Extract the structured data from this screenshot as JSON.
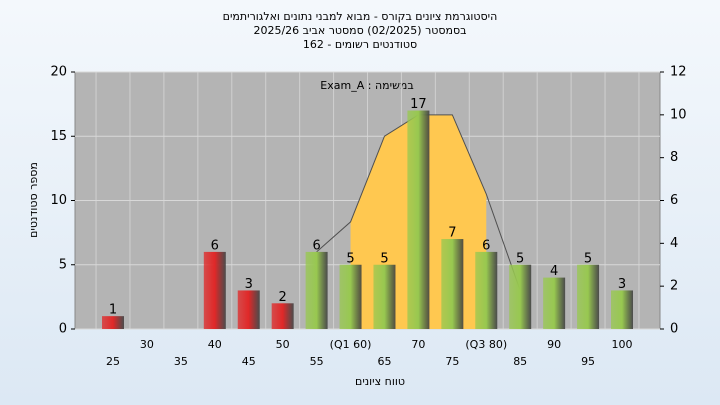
{
  "chart_data": {
    "type": "bar",
    "title": "היסטוגרמת ציונים בקורס - מבוא למבני נתונים ואלגוריתמים",
    "subtitle": [
      "בסמסטר  (02/2025)  סמסטר אביב 2025/26",
      "סטודנטים רשומים - 162"
    ],
    "annotation": "במשימה : Exam_A",
    "y_label": "מספר סטודנטים",
    "x_label": "טווח ציונים",
    "categories": [
      "25",
      "30",
      "35",
      "40",
      "45",
      "50",
      "55",
      "(Q1 60)",
      "65",
      "70",
      "75",
      "(Q3 80)",
      "85",
      "90",
      "95",
      "100"
    ],
    "values": [
      1,
      null,
      null,
      6,
      3,
      2,
      6,
      5,
      5,
      17,
      7,
      6,
      5,
      4,
      5,
      3
    ],
    "colors": [
      "#e02828",
      null,
      null,
      "#e02828",
      "#e02828",
      "#e02828",
      "#98c850",
      "#98c850",
      "#98c850",
      "#98c850",
      "#98c850",
      "#98c850",
      "#98c850",
      "#98c850",
      "#98c850",
      "#98c850"
    ],
    "ylim": [
      0,
      20
    ],
    "yticks": [
      0,
      5,
      10,
      15,
      20
    ],
    "y2lim": [
      0,
      12
    ],
    "y2ticks": [
      0,
      2,
      4,
      6,
      8,
      10,
      12
    ],
    "grid": true,
    "series": [
      {
        "type": "area",
        "color": "#ffc850",
        "axis": "y2",
        "values": [
          null,
          null,
          null,
          null,
          null,
          null,
          null,
          5,
          9,
          10,
          10,
          6.3,
          null,
          null,
          null,
          null
        ]
      },
      {
        "type": "line",
        "color": "#505050",
        "axis": "y2",
        "values": [
          null,
          null,
          null,
          null,
          null,
          null,
          3.6,
          5,
          9,
          10,
          10,
          6.3,
          1.8,
          null,
          null,
          null
        ]
      }
    ]
  }
}
